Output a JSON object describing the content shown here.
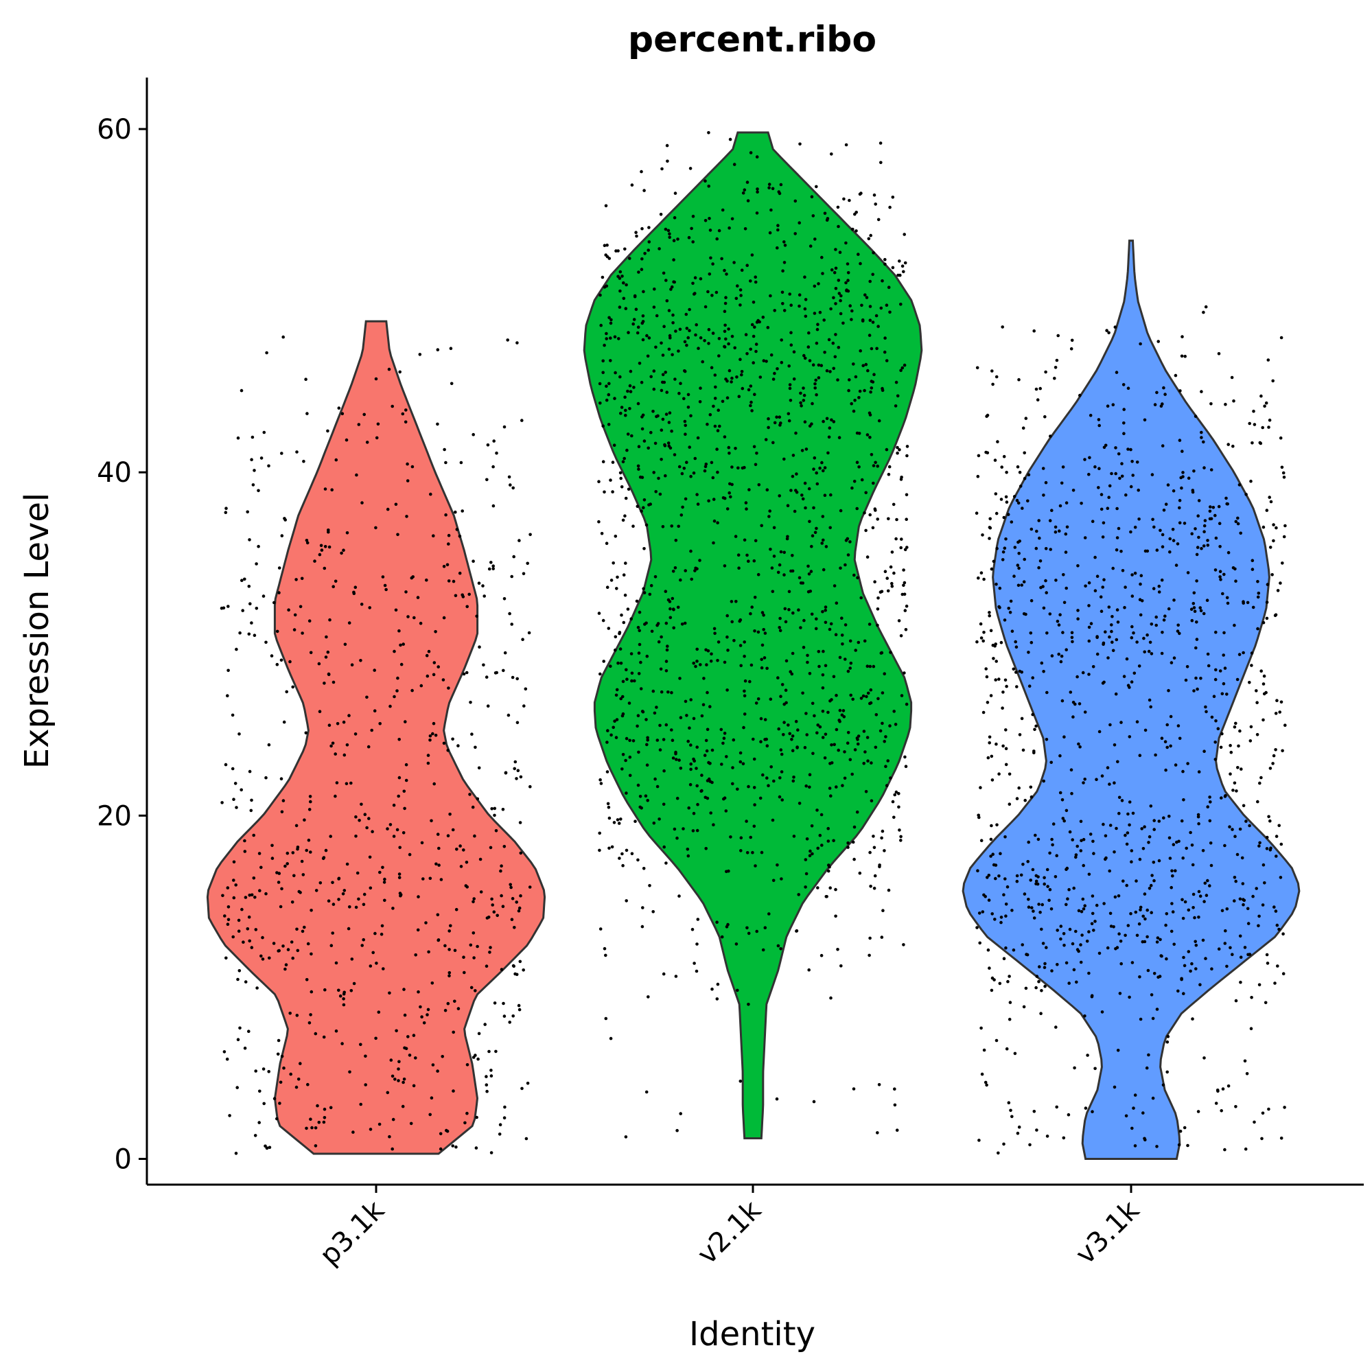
{
  "chart_data": {
    "type": "violin",
    "title": "percent.ribo",
    "xlabel": "Identity",
    "ylabel": "Expression Level",
    "ylim": [
      -1.5,
      63
    ],
    "yticks": [
      0,
      20,
      40,
      60
    ],
    "ytick_labels": [
      "0",
      "20",
      "40",
      "60"
    ],
    "grid": false,
    "legend": "none",
    "categories": [
      "p3.1k",
      "v2.1k",
      "v3.1k"
    ],
    "colors": [
      "#F8766D",
      "#00BA38",
      "#619CFF"
    ],
    "point_color": "#000000",
    "series": [
      {
        "name": "p3.1k",
        "range": [
          0.3,
          48.8
        ],
        "points_count": 700,
        "density_profile": [
          [
            0.3,
            0.37
          ],
          [
            2,
            0.58
          ],
          [
            3.5,
            0.6
          ],
          [
            5.5,
            0.57
          ],
          [
            7.5,
            0.52
          ],
          [
            9.5,
            0.59
          ],
          [
            11,
            0.75
          ],
          [
            12.5,
            0.9
          ],
          [
            14,
            0.99
          ],
          [
            15.5,
            1.0
          ],
          [
            17,
            0.94
          ],
          [
            18.5,
            0.82
          ],
          [
            20,
            0.67
          ],
          [
            22,
            0.52
          ],
          [
            24,
            0.42
          ],
          [
            25,
            0.4
          ],
          [
            26.5,
            0.43
          ],
          [
            28.5,
            0.52
          ],
          [
            30.5,
            0.6
          ],
          [
            32.5,
            0.6
          ],
          [
            34,
            0.56
          ],
          [
            35.5,
            0.52
          ],
          [
            37.5,
            0.46
          ],
          [
            40,
            0.35
          ],
          [
            42.5,
            0.25
          ],
          [
            45,
            0.15
          ],
          [
            47,
            0.08
          ],
          [
            48.8,
            0.06
          ]
        ]
      },
      {
        "name": "v2.1k",
        "range": [
          1.2,
          59.8
        ],
        "points_count": 1400,
        "density_profile": [
          [
            1.2,
            0.05
          ],
          [
            3,
            0.06
          ],
          [
            5,
            0.06
          ],
          [
            7,
            0.07
          ],
          [
            9,
            0.08
          ],
          [
            11,
            0.15
          ],
          [
            13,
            0.2
          ],
          [
            15,
            0.3
          ],
          [
            17,
            0.45
          ],
          [
            19,
            0.63
          ],
          [
            21,
            0.76
          ],
          [
            23,
            0.86
          ],
          [
            25,
            0.93
          ],
          [
            26.5,
            0.94
          ],
          [
            28,
            0.9
          ],
          [
            29.5,
            0.82
          ],
          [
            31,
            0.74
          ],
          [
            33,
            0.65
          ],
          [
            35,
            0.6
          ],
          [
            37,
            0.63
          ],
          [
            39,
            0.72
          ],
          [
            41,
            0.82
          ],
          [
            43,
            0.9
          ],
          [
            45,
            0.96
          ],
          [
            47,
            1.0
          ],
          [
            48.5,
            0.99
          ],
          [
            50,
            0.94
          ],
          [
            51.5,
            0.84
          ],
          [
            53,
            0.7
          ],
          [
            54.5,
            0.55
          ],
          [
            56,
            0.4
          ],
          [
            57.5,
            0.25
          ],
          [
            58.8,
            0.12
          ],
          [
            59.8,
            0.09
          ]
        ]
      },
      {
        "name": "v3.1k",
        "range": [
          0,
          53.5
        ],
        "points_count": 1100,
        "density_profile": [
          [
            0,
            0.27
          ],
          [
            1,
            0.29
          ],
          [
            2.5,
            0.27
          ],
          [
            4,
            0.2
          ],
          [
            5.5,
            0.17
          ],
          [
            7,
            0.2
          ],
          [
            8.5,
            0.3
          ],
          [
            10,
            0.48
          ],
          [
            11.5,
            0.67
          ],
          [
            13,
            0.86
          ],
          [
            14.5,
            0.97
          ],
          [
            15.8,
            1.0
          ],
          [
            17,
            0.95
          ],
          [
            18.5,
            0.82
          ],
          [
            20,
            0.67
          ],
          [
            21.5,
            0.55
          ],
          [
            23,
            0.5
          ],
          [
            24.5,
            0.52
          ],
          [
            26,
            0.58
          ],
          [
            28,
            0.66
          ],
          [
            30,
            0.74
          ],
          [
            32,
            0.8
          ],
          [
            34,
            0.82
          ],
          [
            36,
            0.79
          ],
          [
            38,
            0.72
          ],
          [
            40,
            0.61
          ],
          [
            42,
            0.48
          ],
          [
            44,
            0.33
          ],
          [
            46,
            0.2
          ],
          [
            48,
            0.1
          ],
          [
            50,
            0.04
          ],
          [
            51.5,
            0.02
          ],
          [
            53.5,
            0.01
          ]
        ]
      }
    ]
  }
}
